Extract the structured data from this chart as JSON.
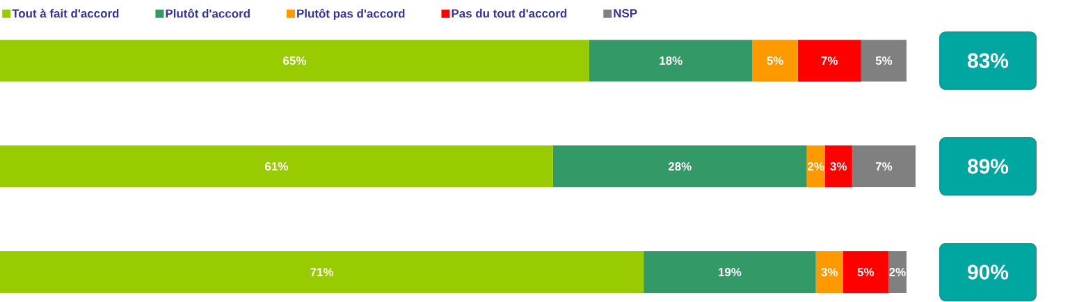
{
  "chart_data": {
    "type": "bar",
    "orientation": "horizontal",
    "stacked": true,
    "legend": "top",
    "categories": [
      null,
      null,
      null
    ],
    "series": [
      {
        "name": "Tout à fait d'accord",
        "color": "#99cc00",
        "values": [
          65,
          61,
          71
        ],
        "value_labels": [
          "65%",
          "61%",
          "71%"
        ]
      },
      {
        "name": "Plutôt d'accord",
        "color": "#339966",
        "values": [
          18,
          28,
          19
        ],
        "value_labels": [
          "18%",
          "28%",
          "19%"
        ]
      },
      {
        "name": "Plutôt pas d'accord",
        "color": "#ff9900",
        "values": [
          5,
          2,
          3
        ],
        "value_labels": [
          "5%",
          "2%",
          "3%"
        ]
      },
      {
        "name": "Pas du tout d'accord",
        "color": "#ff0000",
        "values": [
          7,
          3,
          5
        ],
        "value_labels": [
          "7%",
          "3%",
          "5%"
        ]
      },
      {
        "name": "NSP",
        "color": "#808080",
        "values": [
          5,
          7,
          2
        ],
        "value_labels": [
          "5%",
          "7%",
          "2%"
        ]
      }
    ],
    "annotations": [
      "83%",
      "89%",
      "90%"
    ]
  }
}
